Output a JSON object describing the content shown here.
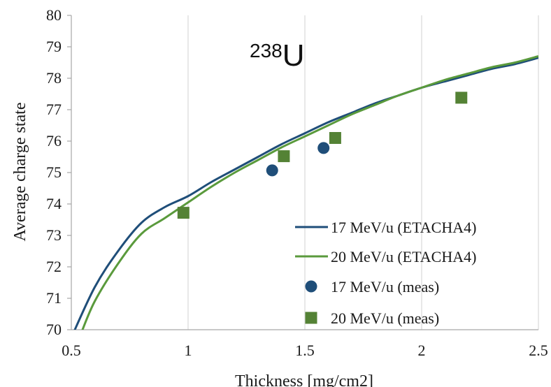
{
  "chart_data": {
    "type": "scatter",
    "title": "",
    "xlabel": "Thickness [mg/cm2]",
    "ylabel": "Average charge state",
    "xlim": [
      0.5,
      2.5
    ],
    "ylim": [
      70,
      80
    ],
    "xticks": [
      0.5,
      1,
      1.5,
      2,
      2.5
    ],
    "xtick_labels": [
      "0.5",
      "1",
      "1.5",
      "2",
      "2.5"
    ],
    "yticks": [
      70,
      71,
      72,
      73,
      74,
      75,
      76,
      77,
      78,
      79,
      80
    ],
    "ytick_labels": [
      "70",
      "71",
      "72",
      "73",
      "74",
      "75",
      "76",
      "77",
      "78",
      "79",
      "80"
    ],
    "grid": "vertical",
    "legend": "bottom-right",
    "annotation": {
      "sup": "238",
      "main": "U"
    },
    "series": [
      {
        "name": "17 MeV/u (ETACHA4)",
        "kind": "line",
        "color": "#1f4e79",
        "x": [
          0.5,
          0.6,
          0.7,
          0.8,
          0.9,
          1.0,
          1.1,
          1.2,
          1.3,
          1.4,
          1.5,
          1.6,
          1.7,
          1.8,
          1.9,
          2.0,
          2.1,
          2.2,
          2.3,
          2.4,
          2.5
        ],
        "y": [
          69.75,
          71.35,
          72.5,
          73.4,
          73.9,
          74.25,
          74.7,
          75.1,
          75.5,
          75.9,
          76.25,
          76.6,
          76.9,
          77.2,
          77.45,
          77.7,
          77.9,
          78.1,
          78.3,
          78.45,
          78.65
        ]
      },
      {
        "name": "20 MeV/u (ETACHA4)",
        "kind": "line",
        "color": "#5a9a3c",
        "x": [
          0.54,
          0.6,
          0.7,
          0.8,
          0.9,
          1.0,
          1.1,
          1.2,
          1.3,
          1.4,
          1.5,
          1.6,
          1.7,
          1.8,
          1.9,
          2.0,
          2.1,
          2.2,
          2.3,
          2.4,
          2.5
        ],
        "y": [
          69.85,
          70.9,
          72.1,
          73.05,
          73.55,
          74.05,
          74.55,
          75.0,
          75.4,
          75.8,
          76.15,
          76.5,
          76.85,
          77.15,
          77.45,
          77.7,
          77.95,
          78.15,
          78.35,
          78.5,
          78.7
        ]
      },
      {
        "name": "17 MeV/u (meas)",
        "kind": "marker",
        "marker": "circle",
        "color": "#1f4e79",
        "x": [
          1.36,
          1.58
        ],
        "y": [
          75.07,
          75.78
        ]
      },
      {
        "name": "20 MeV/u (meas)",
        "kind": "marker",
        "marker": "square",
        "color": "#548235",
        "x": [
          0.98,
          1.41,
          1.63,
          2.17
        ],
        "y": [
          73.72,
          75.52,
          76.1,
          77.38
        ]
      }
    ]
  }
}
